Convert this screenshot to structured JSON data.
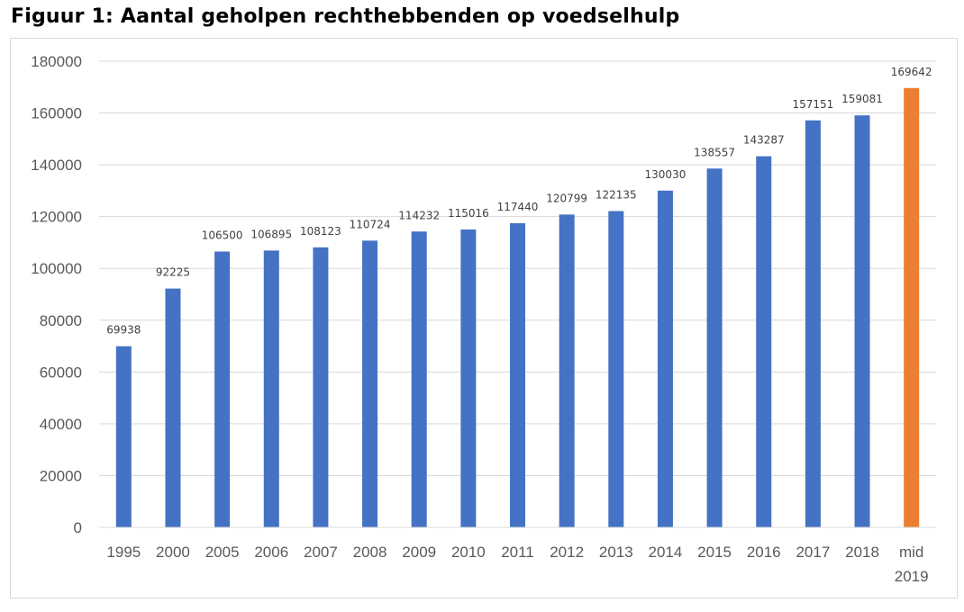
{
  "title": "Figuur 1: Aantal geholpen rechthebbenden op voedselhulp",
  "colors": {
    "bar": "#4472C4",
    "highlight": "#ED7D31",
    "grid": "#D9D9D9",
    "axis_text": "#595959"
  },
  "chart_data": {
    "type": "bar",
    "title": "",
    "xlabel": "",
    "ylabel": "",
    "ylim": [
      0,
      180000
    ],
    "yticks": [
      "0",
      "20000",
      "40000",
      "60000",
      "80000",
      "100000",
      "120000",
      "140000",
      "160000",
      "180000"
    ],
    "grid": true,
    "legend": "none",
    "categories": [
      [
        "1995"
      ],
      [
        "2000"
      ],
      [
        "2005"
      ],
      [
        "2006"
      ],
      [
        "2007"
      ],
      [
        "2008"
      ],
      [
        "2009"
      ],
      [
        "2010"
      ],
      [
        "2011"
      ],
      [
        "2012"
      ],
      [
        "2013"
      ],
      [
        "2014"
      ],
      [
        "2015"
      ],
      [
        "2016"
      ],
      [
        "2017"
      ],
      [
        "2018"
      ],
      [
        "mid",
        "2019"
      ]
    ],
    "values": [
      69938,
      92225,
      106500,
      106895,
      108123,
      110724,
      114232,
      115016,
      117440,
      120799,
      122135,
      130030,
      138557,
      143287,
      157151,
      159081,
      169642
    ],
    "data_labels": [
      "69938",
      "92225",
      "106500",
      "106895",
      "108123",
      "110724",
      "114232",
      "115016",
      "117440",
      "120799",
      "122135",
      "130030",
      "138557",
      "143287",
      "157151",
      "159081",
      "169642"
    ],
    "highlight_index": 16
  }
}
